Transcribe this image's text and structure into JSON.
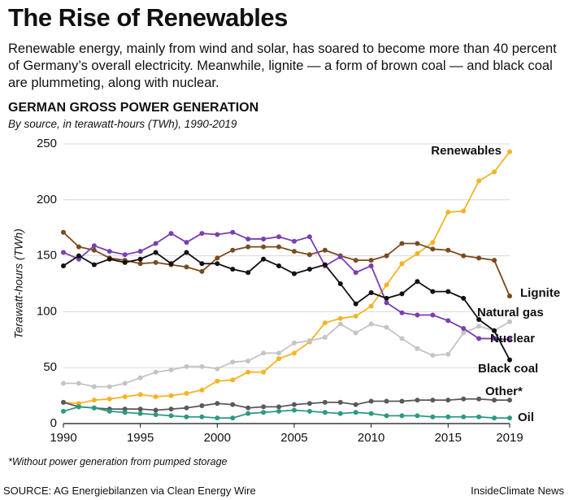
{
  "chart_data": {
    "type": "line",
    "title": "The Rise of Renewables",
    "subtitle": "Renewable energy, mainly from wind and solar, has soared to become more than 40 percent of Germany’s overall electricity. Meanwhile, lignite — a form of brown coal — and black coal are plummeting, along with nuclear.",
    "chart_title": "GERMAN GROSS POWER GENERATION",
    "chart_subtitle": "By source, in terawatt-hours (TWh), 1990-2019",
    "y_label": "Terawatt-hours (TWh)",
    "note": "*Without power generation from pumped storage",
    "source": "SOURCE: AG Energiebilanzen via Clean Energy Wire",
    "credit": "InsideClimate News",
    "x": [
      1990,
      1991,
      1992,
      1993,
      1994,
      1995,
      1996,
      1997,
      1998,
      1999,
      2000,
      2001,
      2002,
      2003,
      2004,
      2005,
      2006,
      2007,
      2008,
      2009,
      2010,
      2011,
      2012,
      2013,
      2014,
      2015,
      2016,
      2017,
      2018,
      2019
    ],
    "xlim": [
      1990,
      2019
    ],
    "xticks": [
      1990,
      1995,
      2000,
      2005,
      2010,
      2015,
      2019
    ],
    "ylim": [
      0,
      250
    ],
    "yticks": [
      0,
      50,
      100,
      150,
      200,
      250
    ],
    "grid": true,
    "series": [
      {
        "name": "Renewables",
        "color": "#f5b325",
        "values": [
          19,
          18,
          21,
          22,
          24,
          26,
          24,
          25,
          27,
          30,
          38,
          39,
          46,
          46,
          58,
          63,
          73,
          90,
          94,
          96,
          105,
          124,
          143,
          152,
          162,
          189,
          190,
          217,
          225,
          243
        ]
      },
      {
        "name": "Lignite",
        "color": "#7a4a1e",
        "values": [
          171,
          158,
          155,
          148,
          146,
          143,
          144,
          142,
          140,
          136,
          148,
          155,
          158,
          158,
          158,
          154,
          151,
          155,
          150,
          146,
          146,
          150,
          161,
          161,
          156,
          155,
          150,
          148,
          146,
          114
        ]
      },
      {
        "name": "Natural gas",
        "color": "#c4c4c4",
        "values": [
          36,
          36,
          33,
          33,
          36,
          41,
          46,
          48,
          51,
          51,
          49,
          55,
          56,
          63,
          63,
          72,
          74,
          77,
          89,
          81,
          89,
          86,
          76,
          67,
          61,
          62,
          81,
          87,
          83,
          91
        ]
      },
      {
        "name": "Nuclear",
        "color": "#7b3fb0",
        "values": [
          153,
          147,
          159,
          154,
          151,
          154,
          161,
          170,
          162,
          170,
          169,
          171,
          165,
          165,
          167,
          163,
          167,
          141,
          149,
          135,
          141,
          108,
          99,
          97,
          97,
          92,
          85,
          76,
          76,
          75
        ]
      },
      {
        "name": "Black coal",
        "color": "#111111",
        "values": [
          141,
          150,
          142,
          147,
          144,
          147,
          153,
          143,
          153,
          143,
          143,
          138,
          135,
          147,
          141,
          134,
          138,
          142,
          125,
          107,
          117,
          112,
          116,
          127,
          118,
          118,
          112,
          93,
          83,
          57
        ]
      },
      {
        "name": "Other*",
        "color": "#595959",
        "values": [
          19,
          15,
          14,
          13,
          13,
          13,
          12,
          13,
          14,
          16,
          18,
          17,
          14,
          15,
          15,
          17,
          18,
          19,
          19,
          17,
          20,
          20,
          20,
          21,
          21,
          21,
          22,
          22,
          21,
          21
        ]
      },
      {
        "name": "Oil",
        "color": "#2a9a82",
        "values": [
          11,
          15,
          14,
          11,
          10,
          9,
          8,
          7,
          6,
          6,
          5,
          5,
          9,
          10,
          11,
          12,
          11,
          10,
          9,
          10,
          9,
          7,
          7,
          7,
          6,
          6,
          6,
          6,
          5,
          5
        ]
      }
    ]
  }
}
